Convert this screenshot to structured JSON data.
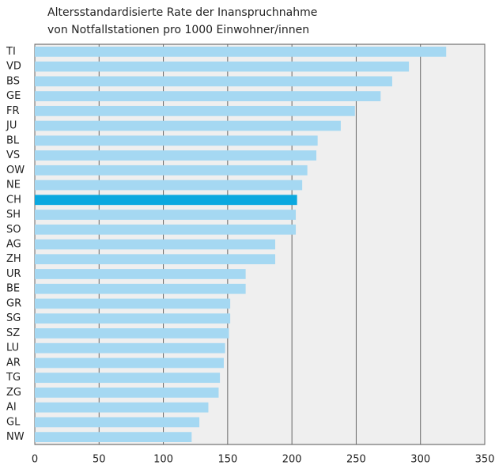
{
  "chart_data": {
    "type": "barh",
    "title": [
      "Altersstandardisierte Rate der Inanspruchnahme",
      "von Notfallstationen pro 1000 Einwohner/innen"
    ],
    "categories": [
      "TI",
      "VD",
      "BS",
      "GE",
      "FR",
      "JU",
      "BL",
      "VS",
      "OW",
      "NE",
      "CH",
      "SH",
      "SO",
      "AG",
      "ZH",
      "UR",
      "BE",
      "GR",
      "SG",
      "SZ",
      "LU",
      "AR",
      "TG",
      "ZG",
      "AI",
      "GL",
      "NW"
    ],
    "values": [
      320,
      291,
      278,
      269,
      249,
      238,
      220,
      219,
      212,
      208,
      204,
      203,
      203,
      187,
      187,
      164,
      164,
      152,
      152,
      151,
      148,
      147,
      144,
      143,
      135,
      128,
      122
    ],
    "colors": [
      "#a5d8f2",
      "#a5d8f2",
      "#a5d8f2",
      "#a5d8f2",
      "#a5d8f2",
      "#a5d8f2",
      "#a5d8f2",
      "#a5d8f2",
      "#a5d8f2",
      "#a5d8f2",
      "#0aa8df",
      "#a5d8f2",
      "#a5d8f2",
      "#a5d8f2",
      "#a5d8f2",
      "#a5d8f2",
      "#a5d8f2",
      "#a5d8f2",
      "#a5d8f2",
      "#a5d8f2",
      "#a5d8f2",
      "#a5d8f2",
      "#a5d8f2",
      "#a5d8f2",
      "#a5d8f2",
      "#a5d8f2",
      "#a5d8f2"
    ],
    "xlim": [
      0,
      350
    ],
    "xticks": [
      0,
      50,
      100,
      150,
      200,
      250,
      300,
      350
    ],
    "grid": true
  }
}
